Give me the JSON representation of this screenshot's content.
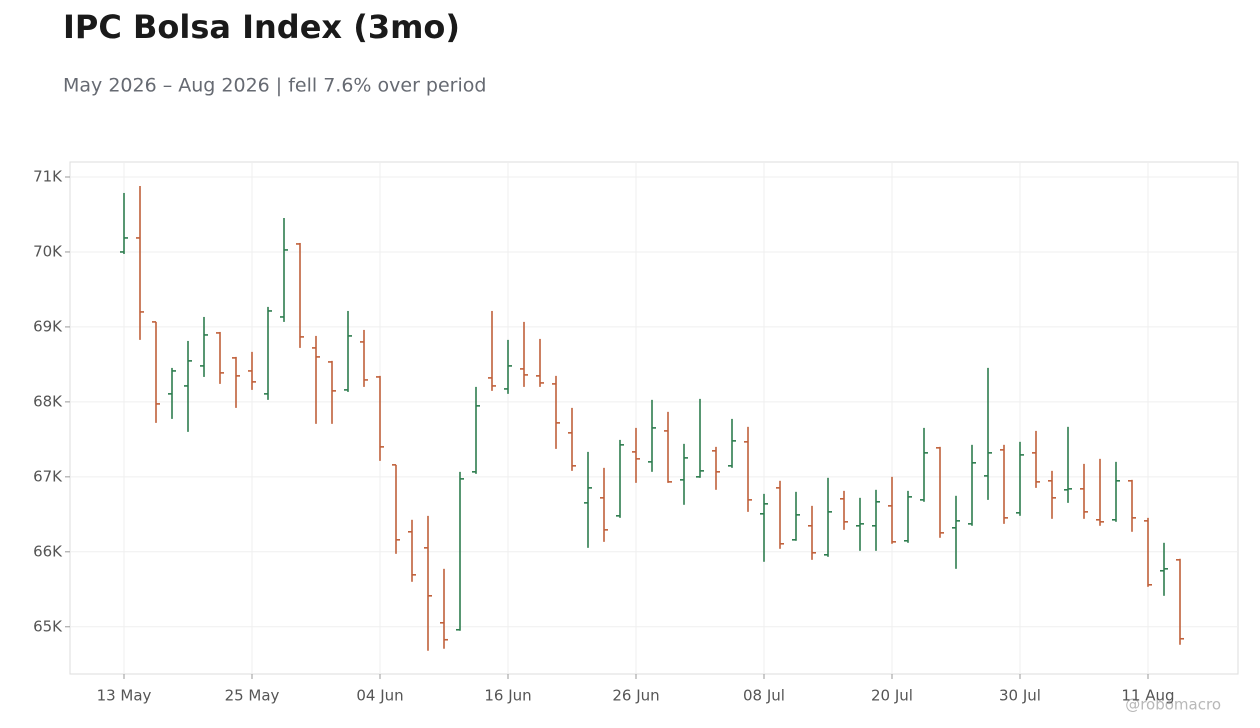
{
  "chart_data": {
    "type": "ohlc",
    "title": "IPC Bolsa Index (3mo)",
    "subtitle": "May 2026 – Aug 2026 | fell 7.6% over period",
    "watermark": "@robomacro",
    "categories": [
      "13 May",
      null,
      null,
      null,
      null,
      null,
      null,
      null,
      "25 May",
      null,
      null,
      null,
      null,
      null,
      null,
      null,
      "04 Jun",
      null,
      null,
      null,
      null,
      null,
      null,
      null,
      "16 Jun",
      null,
      null,
      null,
      null,
      null,
      null,
      null,
      "26 Jun",
      null,
      null,
      null,
      null,
      null,
      null,
      null,
      "08 Jul",
      null,
      null,
      null,
      null,
      null,
      null,
      null,
      "20 Jul",
      null,
      null,
      null,
      null,
      null,
      null,
      null,
      "30 Jul",
      null,
      null,
      null,
      null,
      null,
      null,
      null,
      "11 Aug",
      null,
      null
    ],
    "open": [
      70000,
      70187,
      69067,
      68107,
      68213,
      68480,
      68920,
      68587,
      68413,
      68107,
      69133,
      70107,
      68720,
      68533,
      68160,
      68800,
      68333,
      67160,
      66267,
      66053,
      65053,
      64960,
      67067,
      68320,
      68173,
      68440,
      68347,
      68240,
      67587,
      66653,
      66720,
      66480,
      67333,
      67200,
      67613,
      66960,
      67000,
      67347,
      67147,
      67467,
      66507,
      66853,
      66160,
      66347,
      65960,
      66707,
      66347,
      66347,
      66613,
      66147,
      66693,
      67387,
      66320,
      66373,
      67013,
      67360,
      66520,
      67320,
      66947,
      66827,
      66840,
      66427,
      66427,
      66947,
      66413,
      65747,
      65893
    ],
    "high": [
      70787,
      70880,
      69067,
      68453,
      68813,
      69133,
      68933,
      68600,
      68667,
      69267,
      70453,
      70120,
      68880,
      68547,
      69213,
      68960,
      68347,
      67160,
      66427,
      66480,
      65773,
      67067,
      68200,
      69213,
      68827,
      69067,
      68840,
      68347,
      67920,
      67333,
      67120,
      67493,
      67653,
      68027,
      67867,
      67440,
      68040,
      67400,
      67773,
      67667,
      66773,
      66947,
      66800,
      66613,
      66987,
      66813,
      66720,
      66827,
      67000,
      66813,
      67653,
      67400,
      66747,
      67427,
      68453,
      67427,
      67467,
      67613,
      67080,
      67667,
      67173,
      67240,
      67200,
      66960,
      66453,
      66120,
      65907
    ],
    "low": [
      69973,
      68827,
      67720,
      67773,
      67600,
      68333,
      68240,
      67920,
      68160,
      68027,
      69067,
      68720,
      67707,
      67707,
      68133,
      68200,
      67213,
      65973,
      65600,
      64680,
      64707,
      64947,
      67040,
      68147,
      68107,
      68200,
      68200,
      67373,
      67080,
      66053,
      66133,
      66453,
      66920,
      67067,
      66920,
      66627,
      66987,
      66827,
      67120,
      66533,
      65867,
      66040,
      66147,
      65893,
      65933,
      66293,
      66013,
      66013,
      66107,
      66120,
      66667,
      66187,
      65773,
      66347,
      66693,
      66373,
      66480,
      66853,
      66440,
      66653,
      66440,
      66347,
      66400,
      66267,
      65533,
      65413,
      64760
    ],
    "close": [
      70187,
      69200,
      67973,
      68413,
      68547,
      68893,
      68387,
      68347,
      68267,
      69213,
      70027,
      68867,
      68600,
      68147,
      68880,
      68293,
      67400,
      66160,
      65693,
      65413,
      64827,
      66973,
      67947,
      68213,
      68480,
      68360,
      68253,
      67720,
      67147,
      66853,
      66293,
      67427,
      67240,
      67653,
      66933,
      67253,
      67080,
      67067,
      67480,
      66693,
      66640,
      66107,
      66493,
      65987,
      66533,
      66400,
      66373,
      66667,
      66133,
      66733,
      67320,
      66253,
      66413,
      67187,
      67320,
      66453,
      67293,
      66933,
      66720,
      66840,
      66533,
      66400,
      66947,
      66453,
      65560,
      65773,
      64840
    ],
    "up_color": "#2e7d4f",
    "down_color": "#c0603a",
    "ylim": [
      64370,
      71200
    ],
    "yticks": [
      {
        "value": 65000,
        "label": "65K"
      },
      {
        "value": 66000,
        "label": "66K"
      },
      {
        "value": 67000,
        "label": "67K"
      },
      {
        "value": 68000,
        "label": "68K"
      },
      {
        "value": 69000,
        "label": "69K"
      },
      {
        "value": 70000,
        "label": "70K"
      },
      {
        "value": 71000,
        "label": "71K"
      }
    ],
    "grid": true
  }
}
